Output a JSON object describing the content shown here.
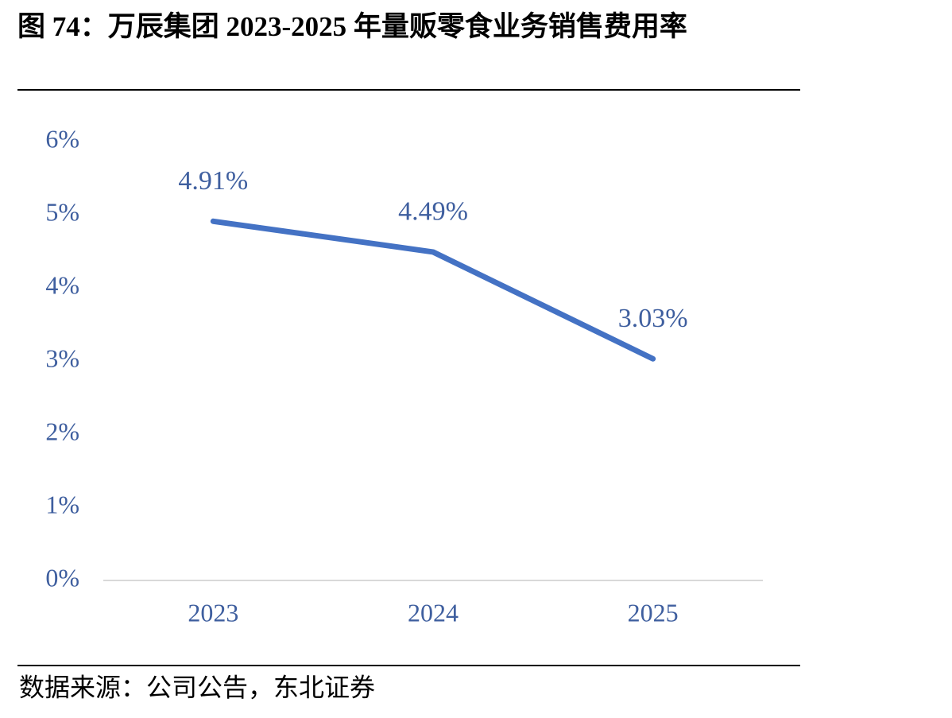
{
  "chart_data": {
    "type": "line",
    "title": "图 74：万辰集团 2023-2025 年量贩零食业务销售费用率",
    "source": "数据来源：公司公告，东北证券",
    "categories": [
      "2023",
      "2024",
      "2025"
    ],
    "values": [
      4.91,
      4.49,
      3.03
    ],
    "value_labels": [
      "4.91%",
      "4.49%",
      "3.03%"
    ],
    "color": "#4472c4",
    "ylim": [
      0,
      6
    ],
    "yticks": [
      {
        "value": 0,
        "label": "0%"
      },
      {
        "value": 1,
        "label": "1%"
      },
      {
        "value": 2,
        "label": "2%"
      },
      {
        "value": 3,
        "label": "3%"
      },
      {
        "value": 4,
        "label": "4%"
      },
      {
        "value": 5,
        "label": "5%"
      },
      {
        "value": 6,
        "label": "6%"
      }
    ],
    "grid": false
  }
}
